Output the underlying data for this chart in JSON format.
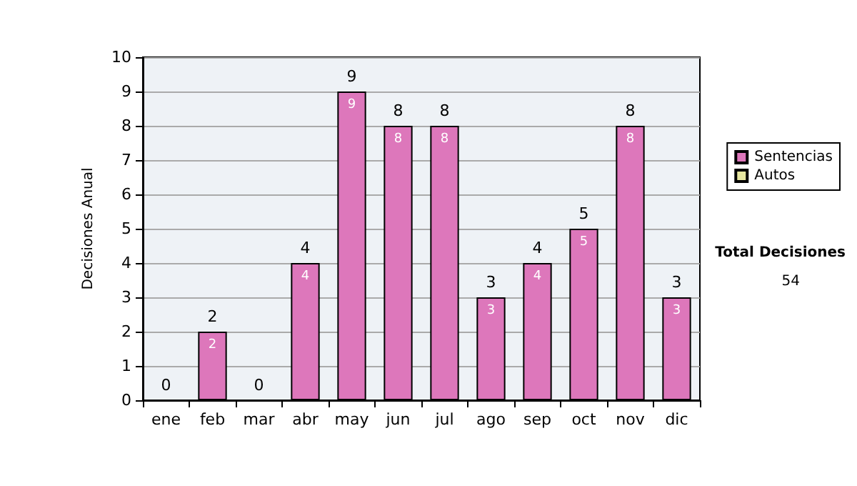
{
  "chart_data": {
    "type": "bar",
    "stacked": true,
    "ylabel": "Decisiones Anual",
    "categories": [
      "ene",
      "feb",
      "mar",
      "abr",
      "may",
      "jun",
      "jul",
      "ago",
      "sep",
      "oct",
      "nov",
      "dic"
    ],
    "series": [
      {
        "name": "Sentencias",
        "color": "#dd77bb",
        "values": [
          0,
          2,
          0,
          4,
          9,
          8,
          8,
          3,
          4,
          5,
          8,
          3
        ],
        "value_labels": [
          null,
          "2",
          null,
          "4",
          "9",
          "8",
          "8",
          "3",
          "4",
          "5",
          "8",
          "3"
        ]
      },
      {
        "name": "Autos",
        "color": "#e6e6a0",
        "values": [
          0,
          0,
          0,
          0,
          0,
          0,
          0,
          0,
          0,
          0,
          0,
          0
        ]
      }
    ],
    "totals": [
      "0",
      "2",
      "0",
      "4",
      "9",
      "8",
      "8",
      "3",
      "4",
      "5",
      "8",
      "3"
    ],
    "ylim": [
      0,
      10
    ],
    "yticks": [
      0,
      1,
      2,
      3,
      4,
      5,
      6,
      7,
      8,
      9,
      10
    ],
    "grid": "y",
    "legend": "right",
    "annotations": [
      "Total Decisiones",
      "54"
    ]
  }
}
